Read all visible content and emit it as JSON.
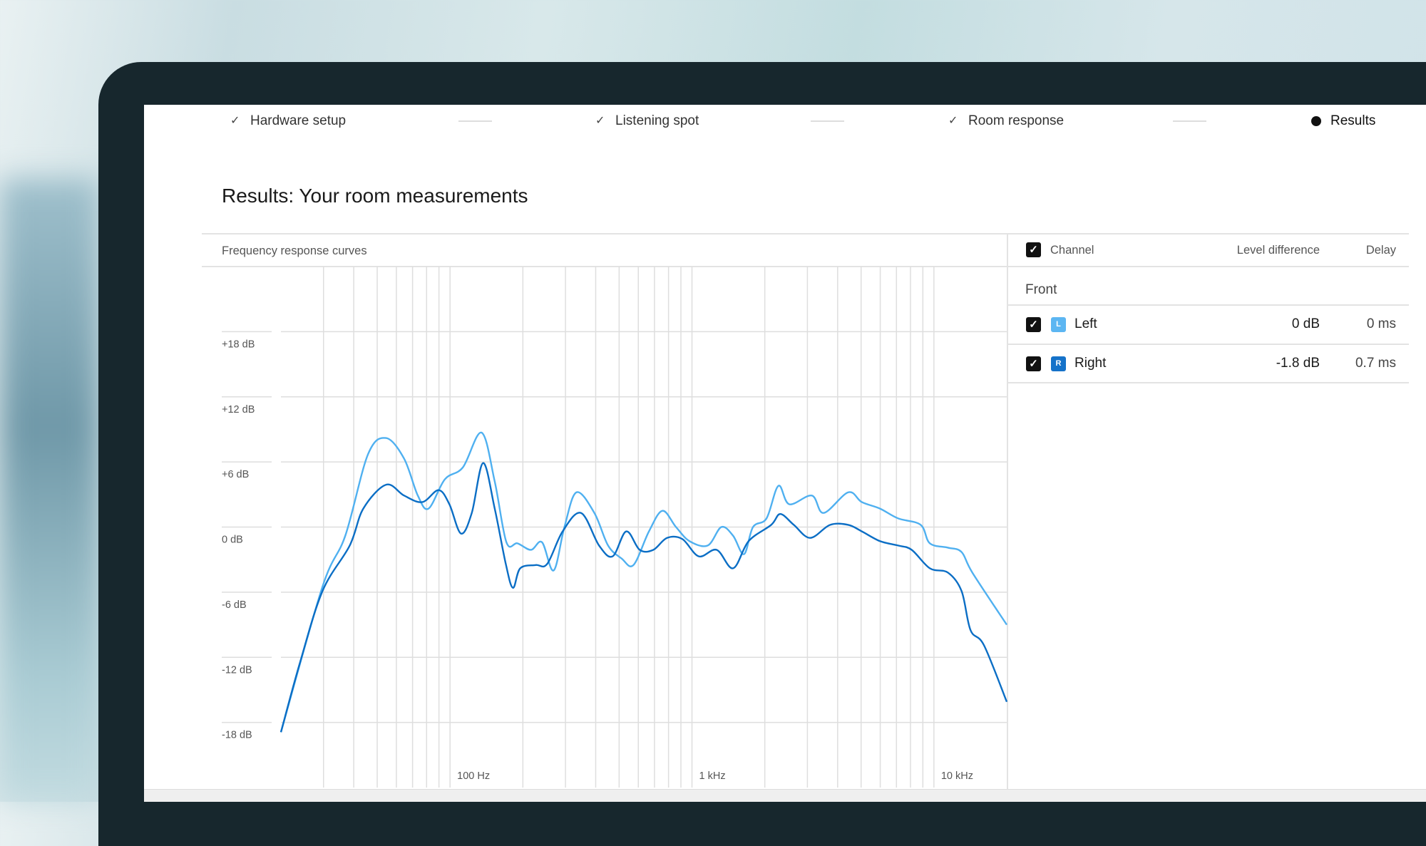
{
  "steps": [
    {
      "label": "Hardware setup",
      "state": "done",
      "icon": "check-icon"
    },
    {
      "label": "Listening spot",
      "state": "done",
      "icon": "check-icon"
    },
    {
      "label": "Room response",
      "state": "done",
      "icon": "check-icon"
    },
    {
      "label": "Results",
      "state": "current",
      "icon": "dot-icon"
    }
  ],
  "page_title": "Results: Your room measurements",
  "chart_panel": {
    "title": "Frequency response curves"
  },
  "table": {
    "headers": {
      "channel": "Channel",
      "level": "Level difference",
      "delay": "Delay"
    },
    "group": "Front",
    "rows": [
      {
        "badge": "L",
        "name": "Left",
        "level": "0 dB",
        "delay": "0 ms",
        "checked": true,
        "color": "#5cb6f2"
      },
      {
        "badge": "R",
        "name": "Right",
        "level": "-1.8 dB",
        "delay": "0.7 ms",
        "checked": true,
        "color": "#1572c9"
      }
    ]
  },
  "chart_data": {
    "type": "line",
    "title": "Frequency response curves",
    "x_scale": "log",
    "xlim": [
      20,
      20000
    ],
    "ylim": [
      -24,
      24
    ],
    "x_ticks": [
      {
        "value": 100,
        "label": "100 Hz"
      },
      {
        "value": 1000,
        "label": "1 kHz"
      },
      {
        "value": 10000,
        "label": "10 kHz"
      }
    ],
    "y_ticks": [
      {
        "value": 18,
        "label": "+18 dB"
      },
      {
        "value": 12,
        "label": "+12 dB"
      },
      {
        "value": 6,
        "label": "+6 dB"
      },
      {
        "value": 0,
        "label": "0 dB"
      },
      {
        "value": -6,
        "label": "-6 dB"
      },
      {
        "value": -12,
        "label": "-12 dB"
      },
      {
        "value": -18,
        "label": "-18 dB"
      }
    ],
    "grid": true,
    "series": [
      {
        "name": "Left",
        "color": "#4fb0f0",
        "points": [
          [
            20,
            -18.9
          ],
          [
            29.7,
            -5.5
          ],
          [
            36.9,
            -0.8
          ],
          [
            45.8,
            6.7
          ],
          [
            54.4,
            8.2
          ],
          [
            64.6,
            6.3
          ],
          [
            73.6,
            2.9
          ],
          [
            81.5,
            1.7
          ],
          [
            95.2,
            4.4
          ],
          [
            113,
            5.5
          ],
          [
            135,
            8.7
          ],
          [
            153,
            4.2
          ],
          [
            171,
            -1.4
          ],
          [
            190,
            -1.5
          ],
          [
            216,
            -2.1
          ],
          [
            240,
            -1.4
          ],
          [
            268,
            -4.0
          ],
          [
            297,
            0
          ],
          [
            333,
            3.2
          ],
          [
            395,
            1.3
          ],
          [
            450,
            -1.7
          ],
          [
            512,
            -2.9
          ],
          [
            573,
            -3.5
          ],
          [
            664,
            -0.4
          ],
          [
            755,
            1.5
          ],
          [
            859,
            0
          ],
          [
            977,
            -1.3
          ],
          [
            1162,
            -1.7
          ],
          [
            1322,
            0
          ],
          [
            1479,
            -0.8
          ],
          [
            1641,
            -2.5
          ],
          [
            1787,
            0
          ],
          [
            2033,
            0.8
          ],
          [
            2277,
            3.8
          ],
          [
            2524,
            2.1
          ],
          [
            3130,
            2.9
          ],
          [
            3500,
            1.3
          ],
          [
            4425,
            3.2
          ],
          [
            5035,
            2.3
          ],
          [
            5985,
            1.7
          ],
          [
            7110,
            0.8
          ],
          [
            8815,
            0.2
          ],
          [
            9620,
            -1.5
          ],
          [
            11430,
            -1.9
          ],
          [
            13010,
            -2.3
          ],
          [
            14420,
            -4.2
          ],
          [
            20000,
            -9.0
          ]
        ]
      },
      {
        "name": "Right",
        "color": "#0b6ec5",
        "points": [
          [
            20,
            -18.9
          ],
          [
            23.9,
            -12.6
          ],
          [
            29.7,
            -5.9
          ],
          [
            38.5,
            -1.7
          ],
          [
            43.8,
            1.7
          ],
          [
            54.4,
            3.9
          ],
          [
            64.6,
            2.9
          ],
          [
            76.8,
            2.3
          ],
          [
            89.7,
            3.4
          ],
          [
            99.4,
            2.1
          ],
          [
            111,
            -0.6
          ],
          [
            123,
            1.3
          ],
          [
            137,
            5.9
          ],
          [
            153,
            1.7
          ],
          [
            170,
            -3.4
          ],
          [
            182,
            -5.6
          ],
          [
            195,
            -3.8
          ],
          [
            226,
            -3.5
          ],
          [
            252,
            -3.4
          ],
          [
            292,
            -0.4
          ],
          [
            348,
            1.3
          ],
          [
            413,
            -1.7
          ],
          [
            470,
            -2.7
          ],
          [
            535,
            -0.4
          ],
          [
            608,
            -2.1
          ],
          [
            692,
            -2.1
          ],
          [
            788,
            -1.0
          ],
          [
            912,
            -1.1
          ],
          [
            1067,
            -2.7
          ],
          [
            1265,
            -2.1
          ],
          [
            1479,
            -3.8
          ],
          [
            1714,
            -1.3
          ],
          [
            2125,
            0.2
          ],
          [
            2318,
            1.2
          ],
          [
            2636,
            0.2
          ],
          [
            3080,
            -1.0
          ],
          [
            3720,
            0.2
          ],
          [
            4425,
            0.2
          ],
          [
            5035,
            -0.4
          ],
          [
            5985,
            -1.3
          ],
          [
            7110,
            -1.7
          ],
          [
            8095,
            -2.1
          ],
          [
            9620,
            -3.8
          ],
          [
            11430,
            -4.2
          ],
          [
            13010,
            -5.9
          ],
          [
            14170,
            -9.5
          ],
          [
            16110,
            -10.9
          ],
          [
            20000,
            -16.1
          ]
        ]
      }
    ]
  }
}
